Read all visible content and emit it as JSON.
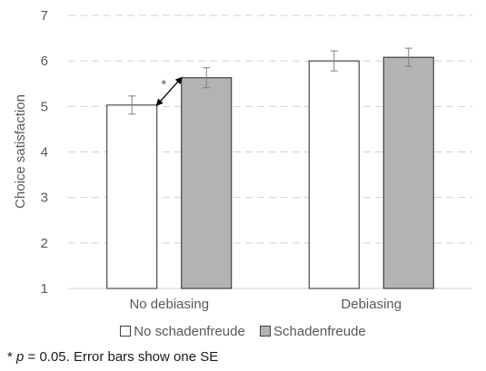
{
  "chart_data": {
    "type": "bar",
    "title": "",
    "ylabel": "Choice satisfaction",
    "xlabel": "",
    "ylim": [
      1,
      7
    ],
    "yticks": [
      1,
      2,
      3,
      4,
      5,
      6,
      7
    ],
    "grid": true,
    "legend_position": "bottom",
    "categories": [
      "No debiasing",
      "Debiasing"
    ],
    "series": [
      {
        "name": "No schadenfreude",
        "values": [
          5.03,
          6.0
        ],
        "se": [
          0.2,
          0.22
        ],
        "color": "#ffffff"
      },
      {
        "name": "Schadenfreude",
        "values": [
          5.63,
          6.08
        ],
        "se": [
          0.22,
          0.2
        ],
        "color": "#b3b3b3"
      }
    ],
    "annotations": [
      {
        "text": "*",
        "category": "No debiasing",
        "between": [
          "No schadenfreude",
          "Schadenfreude"
        ]
      }
    ]
  },
  "footnote": {
    "star": "* ",
    "p": "p",
    "rest": " = 0.05. Error bars show one SE"
  }
}
